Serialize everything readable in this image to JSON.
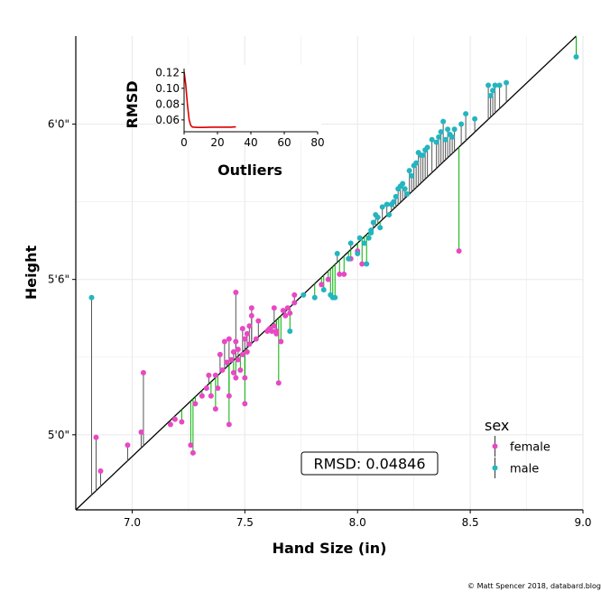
{
  "chart_data": [
    {
      "type": "scatter",
      "xlabel": "Hand Size (in)",
      "ylabel": "Height",
      "xlim": [
        6.75,
        9.0
      ],
      "ylim": [
        57.1,
        75.4
      ],
      "x_ticks": [
        7.0,
        7.5,
        8.0,
        8.5,
        9.0
      ],
      "x_tick_labels": [
        "7.0",
        "7.5",
        "8.0",
        "8.5",
        "9.0"
      ],
      "y_ticks": [
        60,
        66,
        72
      ],
      "y_tick_labels": [
        "5'0\"",
        "5'6\"",
        "6'0\""
      ],
      "grid": true,
      "fit_line": {
        "x": [
          6.75,
          8.97
        ],
        "y": [
          57.1,
          75.4
        ],
        "color": "#000000"
      },
      "residual_colors": {
        "above": "#555555",
        "below": "#00b000"
      },
      "annotation": {
        "label": "RMSD: 0.04846"
      },
      "legend": {
        "title": "sex",
        "position": "bottom-right",
        "entries": [
          "female",
          "male"
        ]
      },
      "series": [
        {
          "name": "female",
          "color": "#e848c4",
          "points": [
            [
              6.84,
              59.9
            ],
            [
              6.86,
              58.6
            ],
            [
              6.98,
              59.6
            ],
            [
              7.04,
              60.1
            ],
            [
              7.05,
              62.4
            ],
            [
              7.17,
              60.4
            ],
            [
              7.19,
              60.6
            ],
            [
              7.22,
              60.5
            ],
            [
              7.26,
              59.6
            ],
            [
              7.27,
              59.3
            ],
            [
              7.28,
              61.2
            ],
            [
              7.31,
              61.5
            ],
            [
              7.33,
              61.8
            ],
            [
              7.34,
              62.3
            ],
            [
              7.35,
              61.5
            ],
            [
              7.37,
              62.3
            ],
            [
              7.37,
              61.0
            ],
            [
              7.38,
              61.8
            ],
            [
              7.39,
              63.1
            ],
            [
              7.4,
              62.5
            ],
            [
              7.41,
              63.6
            ],
            [
              7.42,
              62.8
            ],
            [
              7.43,
              61.5
            ],
            [
              7.43,
              60.4
            ],
            [
              7.43,
              63.7
            ],
            [
              7.44,
              62.9
            ],
            [
              7.45,
              63.2
            ],
            [
              7.45,
              62.4
            ],
            [
              7.46,
              62.2
            ],
            [
              7.46,
              63.6
            ],
            [
              7.46,
              65.5
            ],
            [
              7.47,
              62.9
            ],
            [
              7.47,
              63.3
            ],
            [
              7.48,
              62.5
            ],
            [
              7.49,
              63.1
            ],
            [
              7.49,
              64.1
            ],
            [
              7.5,
              62.2
            ],
            [
              7.5,
              61.2
            ],
            [
              7.5,
              63.7
            ],
            [
              7.51,
              63.9
            ],
            [
              7.51,
              63.2
            ],
            [
              7.52,
              64.2
            ],
            [
              7.52,
              63.5
            ],
            [
              7.53,
              64.6
            ],
            [
              7.53,
              64.9
            ],
            [
              7.55,
              63.7
            ],
            [
              7.56,
              64.4
            ],
            [
              7.6,
              64.0
            ],
            [
              7.61,
              64.1
            ],
            [
              7.62,
              64.0
            ],
            [
              7.63,
              64.9
            ],
            [
              7.63,
              64.2
            ],
            [
              7.64,
              63.9
            ],
            [
              7.64,
              64.0
            ],
            [
              7.65,
              62.0
            ],
            [
              7.66,
              63.6
            ],
            [
              7.67,
              64.8
            ],
            [
              7.68,
              64.6
            ],
            [
              7.69,
              64.9
            ],
            [
              7.7,
              64.7
            ],
            [
              7.72,
              65.1
            ],
            [
              7.72,
              65.4
            ],
            [
              7.84,
              65.8
            ],
            [
              7.87,
              66.0
            ],
            [
              7.92,
              66.2
            ],
            [
              7.94,
              66.2
            ],
            [
              7.97,
              66.8
            ],
            [
              8.0,
              67.1
            ],
            [
              8.02,
              66.6
            ],
            [
              8.45,
              67.1
            ]
          ]
        },
        {
          "name": "male",
          "color": "#23b5c0",
          "points": [
            [
              6.82,
              65.3
            ],
            [
              7.7,
              64.0
            ],
            [
              7.76,
              65.4
            ],
            [
              7.81,
              65.3
            ],
            [
              7.85,
              65.6
            ],
            [
              7.88,
              65.4
            ],
            [
              7.89,
              65.3
            ],
            [
              7.9,
              65.3
            ],
            [
              7.91,
              67.0
            ],
            [
              7.96,
              66.8
            ],
            [
              7.97,
              67.4
            ],
            [
              8.0,
              67.0
            ],
            [
              8.01,
              67.6
            ],
            [
              8.03,
              67.4
            ],
            [
              8.04,
              66.6
            ],
            [
              8.05,
              67.6
            ],
            [
              8.06,
              67.9
            ],
            [
              8.06,
              67.8
            ],
            [
              8.07,
              68.2
            ],
            [
              8.08,
              68.5
            ],
            [
              8.09,
              68.4
            ],
            [
              8.1,
              68.0
            ],
            [
              8.11,
              68.8
            ],
            [
              8.13,
              68.9
            ],
            [
              8.14,
              68.5
            ],
            [
              8.15,
              68.9
            ],
            [
              8.16,
              69.0
            ],
            [
              8.17,
              69.2
            ],
            [
              8.18,
              69.5
            ],
            [
              8.19,
              69.6
            ],
            [
              8.2,
              69.7
            ],
            [
              8.21,
              69.5
            ],
            [
              8.22,
              69.3
            ],
            [
              8.23,
              70.2
            ],
            [
              8.24,
              70.0
            ],
            [
              8.25,
              70.4
            ],
            [
              8.26,
              70.5
            ],
            [
              8.27,
              70.9
            ],
            [
              8.28,
              70.8
            ],
            [
              8.29,
              70.8
            ],
            [
              8.3,
              71.0
            ],
            [
              8.31,
              71.1
            ],
            [
              8.33,
              71.4
            ],
            [
              8.35,
              71.3
            ],
            [
              8.36,
              71.5
            ],
            [
              8.37,
              71.7
            ],
            [
              8.38,
              72.1
            ],
            [
              8.39,
              71.4
            ],
            [
              8.4,
              71.8
            ],
            [
              8.41,
              71.6
            ],
            [
              8.42,
              71.5
            ],
            [
              8.43,
              71.8
            ],
            [
              8.46,
              72.0
            ],
            [
              8.48,
              72.4
            ],
            [
              8.52,
              72.2
            ],
            [
              8.58,
              73.5
            ],
            [
              8.59,
              73.1
            ],
            [
              8.6,
              73.3
            ],
            [
              8.61,
              73.5
            ],
            [
              8.63,
              73.5
            ],
            [
              8.66,
              73.6
            ],
            [
              8.97,
              74.6
            ]
          ]
        }
      ]
    },
    {
      "type": "line",
      "xlabel": "Outliers",
      "ylabel": "RMSD",
      "xlim": [
        0,
        80
      ],
      "ylim": [
        0.045,
        0.125
      ],
      "x_ticks": [
        0,
        20,
        40,
        60,
        80
      ],
      "x_tick_labels": [
        "0",
        "20",
        "40",
        "60",
        "80"
      ],
      "y_ticks": [
        0.06,
        0.08,
        0.1,
        0.12
      ],
      "y_tick_labels": [
        "0.06",
        "0.08",
        "0.10",
        "0.12"
      ],
      "grid": false,
      "series": [
        {
          "color": "#dd0000",
          "x": [
            0,
            1,
            2,
            3,
            4,
            5,
            8,
            12,
            16,
            20,
            24,
            28,
            31
          ],
          "y": [
            0.121,
            0.105,
            0.08,
            0.06,
            0.053,
            0.051,
            0.0505,
            0.0505,
            0.0508,
            0.0508,
            0.0508,
            0.0508,
            0.0512
          ]
        }
      ]
    }
  ],
  "colors": {
    "female": "#e848c4",
    "male": "#23b5c0",
    "fit_line": "#000000",
    "residual_above": "#555555",
    "residual_below": "#00b000",
    "inset_line": "#dd0000",
    "grid": "#ebebeb"
  },
  "credit": "© Matt Spencer 2018, databard.blog"
}
